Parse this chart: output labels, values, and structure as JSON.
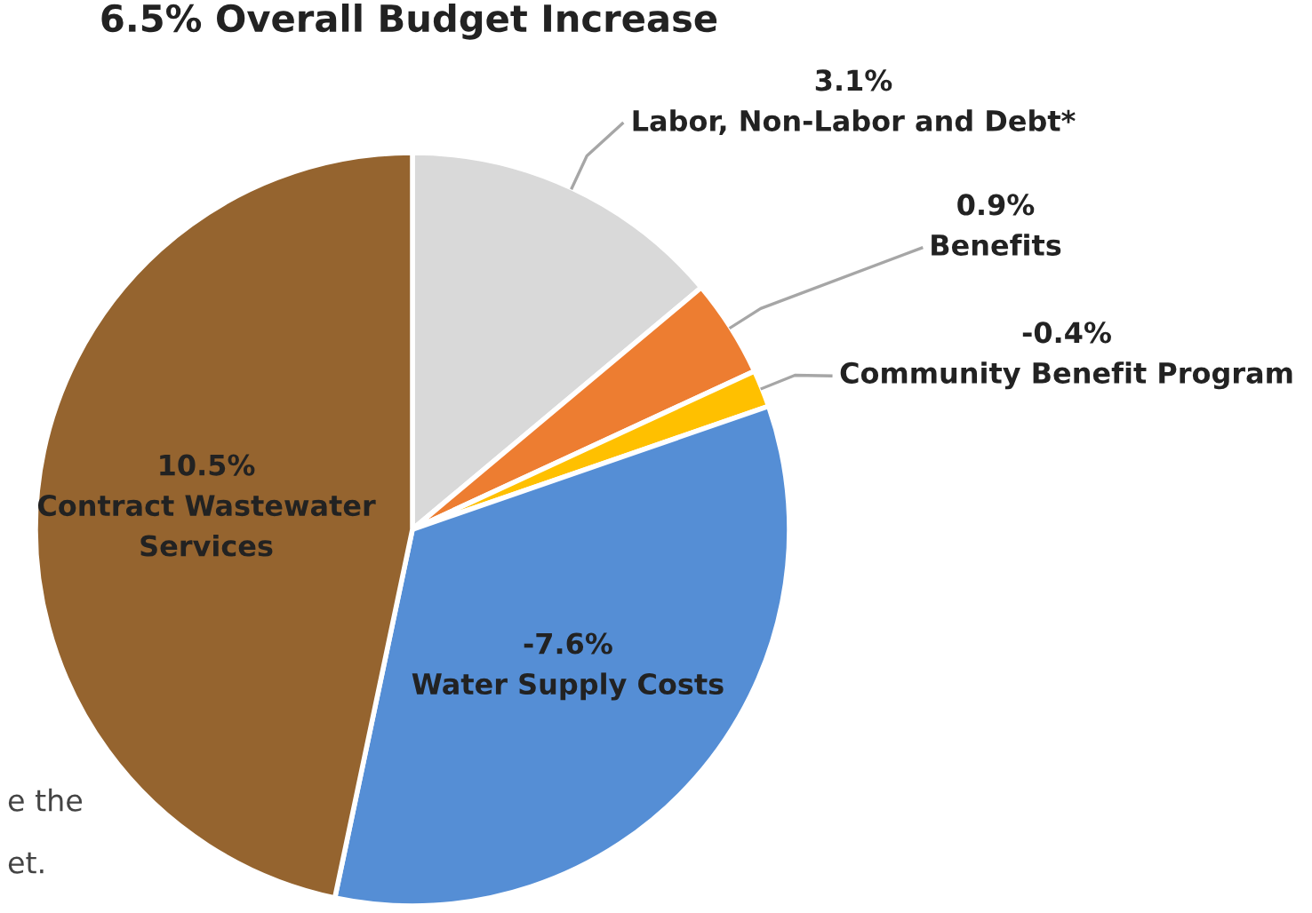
{
  "chart_data": {
    "type": "pie",
    "title": "6.5% Overall Budget Increase",
    "categories": [
      "3.1%\nLabor, Non-Labor and Debt*",
      "0.9%\nBenefits",
      "-0.4%\nCommunity Benefit Program",
      "-7.6%\nWater Supply Costs",
      "10.5%\nContract Wastewater\nServices"
    ],
    "values": [
      13.9,
      4.2,
      1.6,
      33.6,
      46.7
    ],
    "colors": [
      "#d9d9d9",
      "#ed7d31",
      "#ffc000",
      "#558ed5",
      "#95642f"
    ],
    "annotations": [
      "e the",
      "et."
    ]
  }
}
